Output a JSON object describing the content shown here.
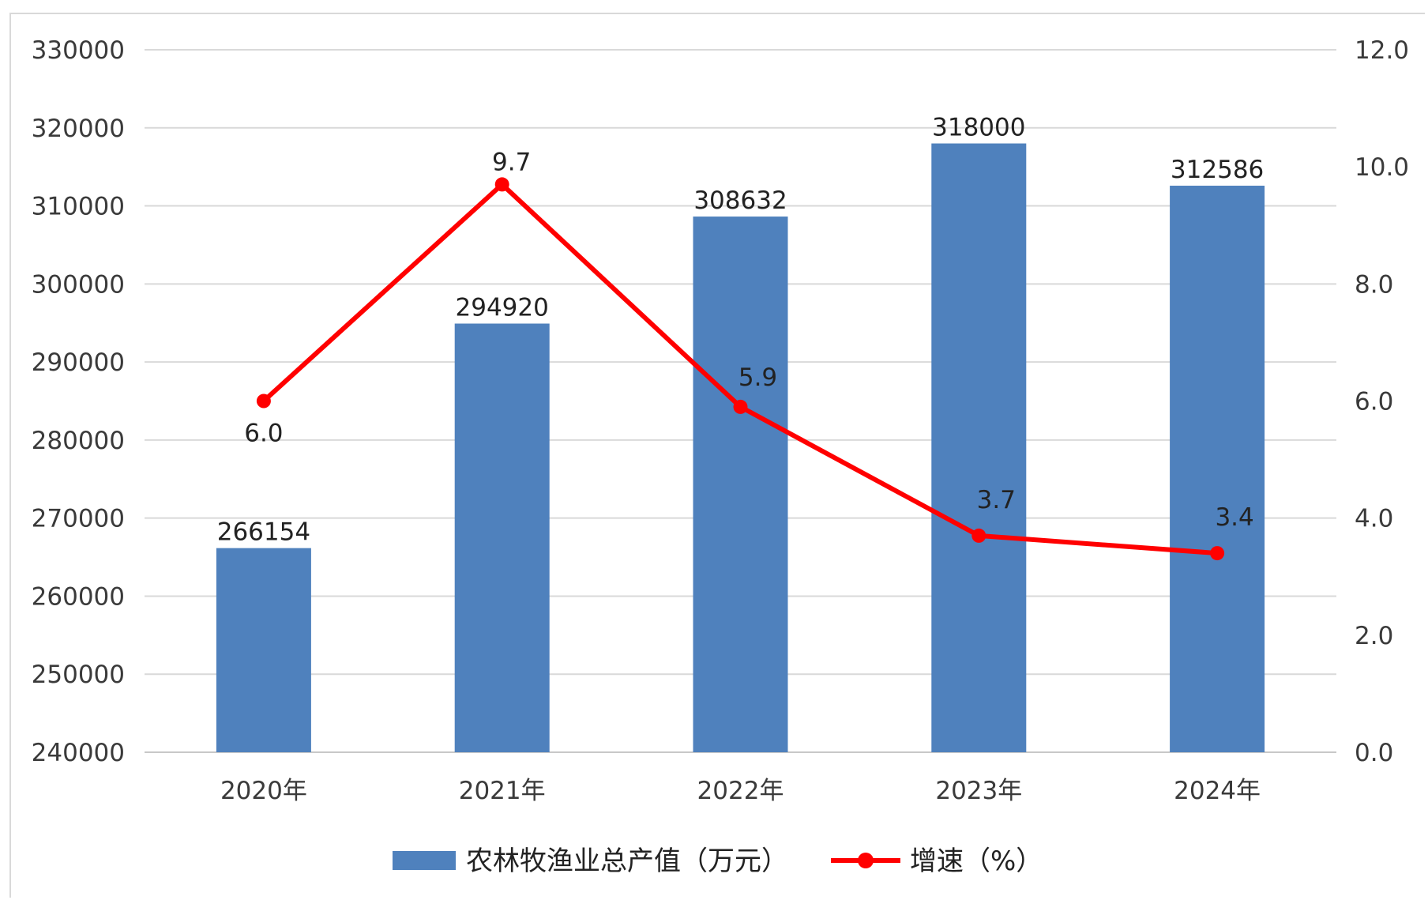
{
  "chart_data": {
    "type": "bar",
    "categories": [
      "2020年",
      "2021年",
      "2022年",
      "2023年",
      "2024年"
    ],
    "series": [
      {
        "name": "农林牧渔业总产值（万元）",
        "type": "bar",
        "axis": "left",
        "color": "#4f81bd",
        "values": [
          266154,
          294920,
          308632,
          318000,
          312586
        ],
        "labels": [
          "266154",
          "294920",
          "308632",
          "318000",
          "312586"
        ]
      },
      {
        "name": "增速（%）",
        "type": "line",
        "axis": "right",
        "color": "#ff0000",
        "values": [
          6.0,
          9.7,
          5.9,
          3.7,
          3.4
        ],
        "labels": [
          "6.0",
          "9.7",
          "5.9",
          "3.7",
          "3.4"
        ]
      }
    ],
    "y_left": {
      "min": 240000,
      "max": 330000,
      "ticks": [
        "240000",
        "250000",
        "260000",
        "270000",
        "280000",
        "290000",
        "300000",
        "310000",
        "320000",
        "330000"
      ]
    },
    "y_right": {
      "min": 0,
      "max": 12,
      "ticks": [
        "0.0",
        "2.0",
        "4.0",
        "6.0",
        "8.0",
        "10.0",
        "12.0"
      ]
    },
    "grid": true,
    "legend": "bottom"
  }
}
